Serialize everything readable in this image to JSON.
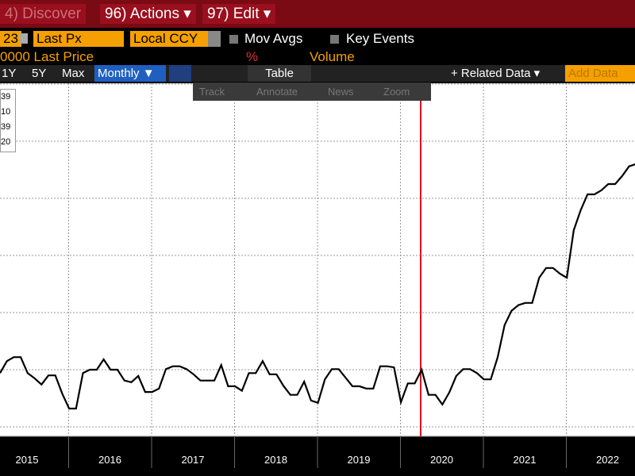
{
  "menu": {
    "discover": "4) Discover",
    "actions": "96) Actions ▾",
    "edit": "97) Edit ▾"
  },
  "controls": {
    "date": "23",
    "price_field": "Last Px",
    "currency": "Local CCY",
    "mov_avgs": "Mov Avgs",
    "key_events": "Key Events",
    "last_price": "0000 Last Price",
    "percent": "%",
    "volume": "Volume"
  },
  "toolbar": [
    "1Y",
    "5Y",
    "Max",
    "Monthly ▼",
    "Table",
    "+ Related Data ▾",
    "Add Data"
  ],
  "chart_tools": [
    "Track",
    "Annotate",
    "News",
    "Zoom"
  ],
  "legend": [
    "39",
    "10",
    "39",
    "20"
  ],
  "axis": {
    "years": [
      "2015",
      "2016",
      "2017",
      "2018",
      "2019",
      "2020",
      "2021",
      "2022"
    ]
  },
  "chart_data": {
    "type": "line",
    "color": "#000000",
    "grid": true,
    "ylim": [
      0,
      6
    ],
    "values": [
      0.94,
      1.15,
      1.22,
      1.22,
      0.94,
      0.85,
      0.74,
      0.9,
      0.9,
      0.58,
      0.32,
      0.32,
      0.94,
      1.0,
      1.0,
      1.18,
      1.0,
      1.0,
      0.81,
      0.78,
      0.89,
      0.61,
      0.61,
      0.67,
      1.01,
      1.06,
      1.06,
      1.01,
      0.92,
      0.81,
      0.81,
      0.81,
      1.08,
      0.71,
      0.71,
      0.63,
      0.94,
      0.94,
      1.15,
      0.92,
      0.92,
      0.72,
      0.56,
      0.56,
      0.79,
      0.46,
      0.42,
      0.83,
      1.01,
      1.01,
      0.86,
      0.71,
      0.71,
      0.67,
      0.67,
      1.06,
      1.06,
      1.04,
      0.43,
      0.76,
      0.76,
      1.0,
      0.56,
      0.56,
      0.39,
      0.6,
      0.89,
      1.01,
      1.01,
      0.94,
      0.83,
      0.83,
      1.22,
      1.78,
      2.03,
      2.13,
      2.17,
      2.17,
      2.61,
      2.78,
      2.78,
      2.68,
      2.61,
      3.44,
      3.79,
      4.07,
      4.07,
      4.14,
      4.25,
      4.25,
      4.39,
      4.56,
      4.6
    ]
  }
}
